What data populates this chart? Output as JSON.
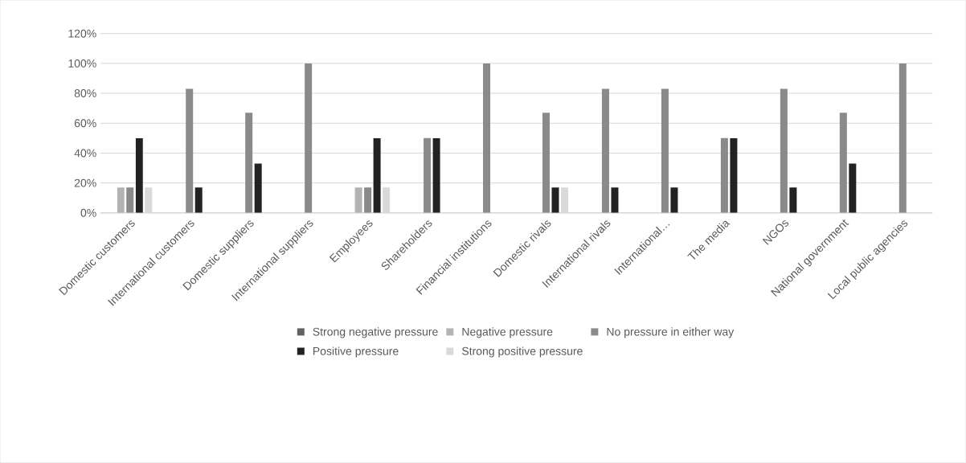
{
  "chart_data": {
    "type": "bar",
    "categories": [
      "Domestic customers",
      "International customers",
      "Domestic suppliers",
      "International suppliers",
      "Employees",
      "Shareholders",
      "Financial institutions",
      "Domestic rivals",
      "International rivals",
      "International…",
      "The media",
      "NGOs",
      "National government",
      "Local public agencies"
    ],
    "series": [
      {
        "name": "Strong negative pressure",
        "color": "#636363",
        "values": [
          0,
          0,
          0,
          0,
          0,
          0,
          0,
          0,
          0,
          0,
          0,
          0,
          0,
          0
        ]
      },
      {
        "name": "Negative pressure",
        "color": "#b3b3b3",
        "values": [
          17,
          0,
          0,
          0,
          17,
          0,
          0,
          0,
          0,
          0,
          0,
          0,
          0,
          0
        ]
      },
      {
        "name": "No pressure in either way",
        "color": "#8a8a8a",
        "values": [
          17,
          83,
          67,
          100,
          17,
          50,
          100,
          67,
          83,
          83,
          50,
          83,
          67,
          100
        ]
      },
      {
        "name": "Positive pressure",
        "color": "#222222",
        "values": [
          50,
          17,
          33,
          0,
          50,
          50,
          0,
          17,
          17,
          17,
          50,
          17,
          33,
          0
        ]
      },
      {
        "name": "Strong positive pressure",
        "color": "#d9d9d9",
        "values": [
          17,
          0,
          0,
          0,
          17,
          0,
          0,
          17,
          0,
          0,
          0,
          0,
          0,
          0
        ]
      }
    ],
    "ylim": [
      0,
      120
    ],
    "yticks": [
      {
        "value": 0,
        "label": "0%"
      },
      {
        "value": 20,
        "label": "20%"
      },
      {
        "value": 40,
        "label": "40%"
      },
      {
        "value": 60,
        "label": "60%"
      },
      {
        "value": 80,
        "label": "80%"
      },
      {
        "value": 100,
        "label": "100%"
      },
      {
        "value": 120,
        "label": "120%"
      }
    ],
    "grid": "y",
    "legend": "bottom"
  }
}
